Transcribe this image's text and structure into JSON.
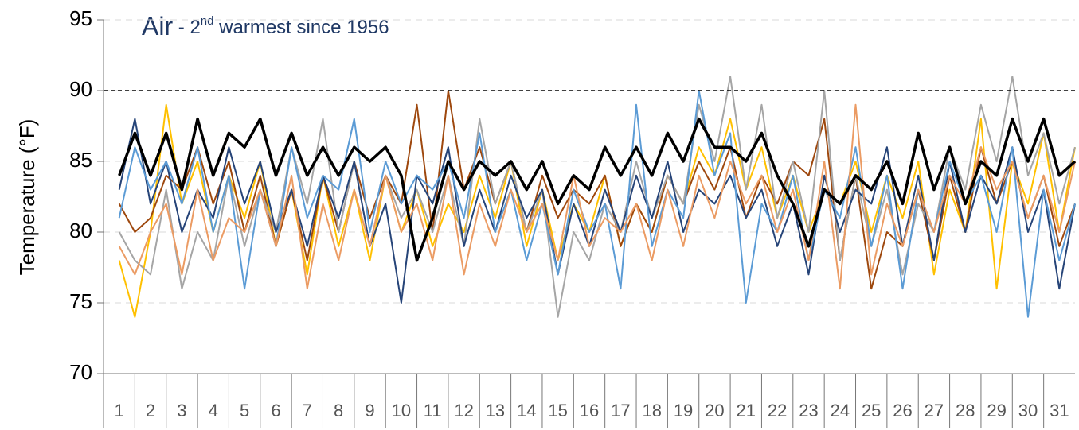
{
  "chart_data": {
    "type": "line",
    "title_parts": [
      "Air",
      " - 2",
      "nd",
      " warmest since 1956"
    ],
    "y_label": "Temperature (°F)",
    "ylim": [
      70,
      95
    ],
    "yticks": [
      70,
      75,
      80,
      85,
      90,
      95
    ],
    "xlim": [
      0.5,
      31.5
    ],
    "xticks": [
      1,
      2,
      3,
      4,
      5,
      6,
      7,
      8,
      9,
      10,
      11,
      12,
      13,
      14,
      15,
      16,
      17,
      18,
      19,
      20,
      21,
      22,
      23,
      24,
      25,
      26,
      27,
      28,
      29,
      30,
      31
    ],
    "reference_line": 90,
    "grid": true,
    "x": [
      1,
      1.5,
      2,
      2.5,
      3,
      3.5,
      4,
      4.5,
      5,
      5.5,
      6,
      6.5,
      7,
      7.5,
      8,
      8.5,
      9,
      9.5,
      10,
      10.5,
      11,
      11.5,
      12,
      12.5,
      13,
      13.5,
      14,
      14.5,
      15,
      15.5,
      16,
      16.5,
      17,
      17.5,
      18,
      18.5,
      19,
      19.5,
      20,
      20.5,
      21,
      21.5,
      22,
      22.5,
      23,
      23.5,
      24,
      24.5,
      25,
      25.5,
      26,
      26.5,
      27,
      27.5,
      28,
      28.5,
      29,
      29.5,
      30,
      30.5,
      31,
      31.5
    ],
    "series": [
      {
        "color": "#ffc000",
        "values": [
          78,
          74,
          80,
          89,
          82,
          85,
          80,
          84,
          81,
          85,
          79,
          83,
          77,
          84,
          79,
          83,
          78,
          84,
          80,
          83,
          79,
          82,
          80,
          84,
          81,
          85,
          79,
          83,
          78,
          82,
          80,
          84,
          79,
          82,
          80,
          84,
          82,
          86,
          84,
          88,
          83,
          86,
          81,
          84,
          80,
          83,
          82,
          85,
          80,
          84,
          81,
          85,
          77,
          83,
          80,
          88,
          76,
          85,
          82,
          87,
          80,
          86
        ]
      },
      {
        "color": "#9e480e",
        "values": [
          82,
          80,
          81,
          84,
          83,
          86,
          82,
          85,
          80,
          84,
          79,
          83,
          78,
          84,
          80,
          85,
          81,
          84,
          82,
          89,
          80,
          90,
          83,
          86,
          82,
          85,
          80,
          84,
          81,
          83,
          82,
          84,
          79,
          82,
          80,
          84,
          82,
          85,
          83,
          86,
          81,
          84,
          82,
          85,
          84,
          88,
          78,
          84,
          76,
          80,
          79,
          83,
          78,
          84,
          80,
          86,
          82,
          85,
          81,
          84,
          79,
          82
        ]
      },
      {
        "color": "#a5a5a5",
        "values": [
          80,
          78,
          77,
          83,
          76,
          80,
          78,
          84,
          79,
          83,
          80,
          86,
          82,
          88,
          80,
          85,
          79,
          84,
          81,
          83,
          80,
          84,
          79,
          88,
          82,
          85,
          80,
          83,
          74,
          80,
          78,
          82,
          80,
          85,
          81,
          84,
          82,
          89,
          85,
          91,
          83,
          89,
          81,
          85,
          80,
          90,
          78,
          84,
          79,
          83,
          77,
          82,
          80,
          86,
          83,
          89,
          85,
          91,
          84,
          87,
          82,
          86
        ]
      },
      {
        "color": "#264478",
        "values": [
          83,
          88,
          82,
          85,
          80,
          83,
          81,
          86,
          82,
          85,
          80,
          83,
          79,
          84,
          81,
          85,
          79,
          82,
          75,
          84,
          82,
          86,
          79,
          83,
          80,
          84,
          81,
          83,
          77,
          82,
          79,
          83,
          80,
          84,
          81,
          85,
          80,
          83,
          82,
          84,
          81,
          83,
          79,
          82,
          77,
          84,
          80,
          83,
          82,
          86,
          79,
          84,
          78,
          85,
          80,
          84,
          82,
          86,
          80,
          83,
          76,
          82
        ]
      },
      {
        "color": "#5b9bd5",
        "values": [
          81,
          86,
          83,
          85,
          82,
          86,
          80,
          84,
          76,
          83,
          79,
          86,
          81,
          84,
          83,
          88,
          80,
          85,
          82,
          84,
          83,
          85,
          81,
          87,
          80,
          83,
          78,
          82,
          77,
          83,
          80,
          82,
          76,
          89,
          79,
          83,
          81,
          90,
          84,
          87,
          75,
          82,
          80,
          84,
          78,
          83,
          81,
          86,
          79,
          84,
          76,
          83,
          80,
          85,
          82,
          84,
          80,
          86,
          74,
          83,
          78,
          82
        ]
      },
      {
        "color": "#eb9b63",
        "values": [
          79,
          77,
          80,
          82,
          77,
          83,
          78,
          81,
          80,
          83,
          79,
          84,
          76,
          82,
          78,
          83,
          79,
          84,
          80,
          82,
          78,
          84,
          77,
          82,
          79,
          83,
          80,
          82,
          78,
          84,
          79,
          81,
          80,
          82,
          78,
          83,
          79,
          84,
          81,
          85,
          82,
          84,
          80,
          83,
          78,
          85,
          76,
          89,
          77,
          82,
          79,
          83,
          80,
          84,
          82,
          86,
          83,
          85,
          81,
          84,
          80,
          85
        ]
      },
      {
        "color": "#000000",
        "values": [
          84,
          87,
          84,
          87,
          83,
          88,
          84,
          87,
          86,
          88,
          84,
          87,
          84,
          86,
          84,
          86,
          85,
          86,
          84,
          78,
          81,
          85,
          83,
          85,
          84,
          85,
          83,
          85,
          82,
          84,
          83,
          86,
          84,
          86,
          84,
          87,
          85,
          88,
          86,
          86,
          85,
          87,
          84,
          82,
          79,
          83,
          82,
          84,
          83,
          85,
          82,
          87,
          83,
          86,
          82,
          85,
          84,
          88,
          85,
          88,
          84,
          85
        ]
      }
    ]
  }
}
